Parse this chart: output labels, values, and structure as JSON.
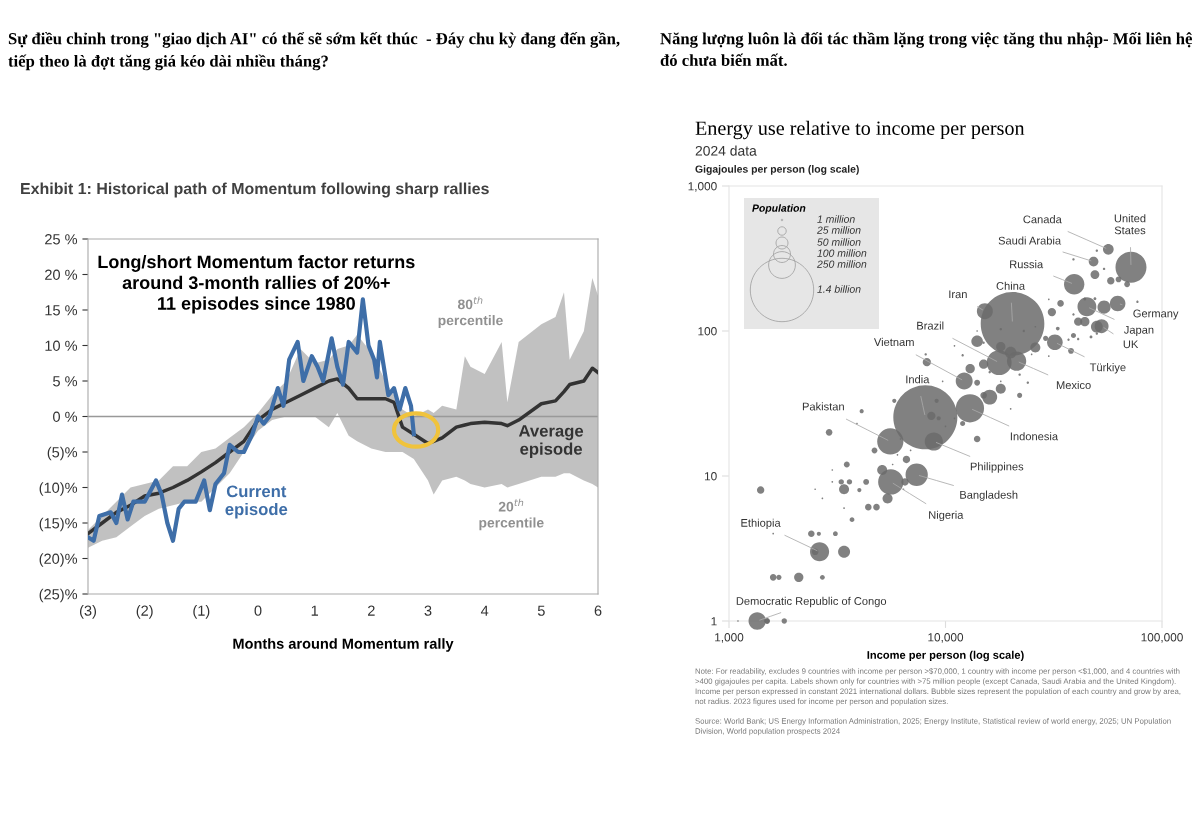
{
  "chart_data": [
    {
      "type": "line",
      "title": "Sự điều chỉnh trong \"giao dịch AI\" có thể sẽ sớm kết thúc  - Đáy chu kỳ đang đến gần, tiếp theo là đợt tăng giá kéo dài nhiều tháng?",
      "subtitle": "Exhibit 1: Historical path of Momentum following sharp rallies",
      "xlabel": "Months around Momentum rally",
      "xlim": [
        -3,
        6
      ],
      "xticks": [
        {
          "value": -3,
          "label": "(3)"
        },
        {
          "value": -2,
          "label": "(2)"
        },
        {
          "value": -1,
          "label": "(1)"
        },
        0,
        1,
        2,
        3,
        4,
        5,
        6
      ],
      "ylim": [
        -25,
        25
      ],
      "yticks": [
        {
          "value": -25,
          "label": "(25)%"
        },
        {
          "value": -20,
          "label": "(20)%"
        },
        {
          "value": -15,
          "label": "(15)%"
        },
        {
          "value": -10,
          "label": "(10)%"
        },
        {
          "value": -5,
          "label": "(5)%"
        },
        {
          "value": 0,
          "label": "0 %"
        },
        {
          "value": 5,
          "label": "5 %"
        },
        {
          "value": 10,
          "label": "10 %"
        },
        {
          "value": 15,
          "label": "15 %"
        },
        {
          "value": 20,
          "label": "20 %"
        },
        {
          "value": 25,
          "label": "25 %"
        }
      ],
      "ref_lines": [
        {
          "axis": "y",
          "value": 0,
          "color": "#999999"
        }
      ],
      "series": [
        {
          "name": "Average episode",
          "color": "#333333",
          "x": [
            -3,
            -2.75,
            -2.5,
            -2.25,
            -2,
            -1.75,
            -1.5,
            -1.25,
            -1,
            -0.75,
            -0.5,
            -0.25,
            0,
            0.25,
            0.5,
            0.75,
            1,
            1.25,
            1.4,
            1.6,
            1.75,
            2,
            2.25,
            2.4,
            2.55,
            2.75,
            3,
            3.1,
            3.25,
            3.5,
            3.65,
            3.75,
            4,
            4.3,
            4.4,
            4.6,
            5,
            5.25,
            5.4,
            5.5,
            5.75,
            5.9,
            6
          ],
          "values": [
            -16.5,
            -15,
            -13.5,
            -12.5,
            -11.2,
            -10.8,
            -10,
            -9,
            -7.8,
            -6.5,
            -5,
            -3.5,
            -0.5,
            1,
            2,
            3,
            4,
            5,
            5.3,
            4,
            2.5,
            2.5,
            2.5,
            2,
            -1.5,
            -2.5,
            -3.8,
            -3.5,
            -3,
            -1.5,
            -1.2,
            -1,
            -0.8,
            -1,
            -1.3,
            -0.5,
            1.8,
            2.2,
            3.5,
            4.5,
            5,
            6.8,
            6.2
          ],
          "lower": [
            -18.5,
            -17.5,
            -17,
            -15.5,
            -14,
            -13,
            -12.5,
            -12,
            -12,
            -10,
            -8,
            -5,
            -2,
            -0.5,
            0,
            0,
            0,
            -1.5,
            0.5,
            -2.7,
            -3.5,
            -4.5,
            -5,
            -5,
            -5,
            -6,
            -9,
            -11,
            -9,
            -8.5,
            -9,
            -9.5,
            -10,
            -9.5,
            -10,
            -9.5,
            -8.5,
            -8.5,
            -8,
            -8,
            -9,
            -9.5,
            -10
          ],
          "upper": [
            -16,
            -14,
            -12,
            -10,
            -9.5,
            -9,
            -7,
            -7,
            -5,
            -4.5,
            -3,
            -1.5,
            0.5,
            3,
            5,
            9.5,
            7.5,
            8,
            9.5,
            10,
            11.5,
            9,
            5,
            3,
            1,
            0,
            1,
            0.5,
            1.5,
            1,
            8.5,
            7,
            6,
            10.5,
            2,
            10.5,
            13,
            14,
            17.5,
            8,
            12,
            19.5,
            17
          ]
        },
        {
          "name": "Current episode",
          "color": "#3e6ea8",
          "x": [
            -3,
            -2.9,
            -2.8,
            -2.6,
            -2.5,
            -2.4,
            -2.3,
            -2.2,
            -2,
            -1.8,
            -1.7,
            -1.6,
            -1.5,
            -1.4,
            -1.3,
            -1.1,
            -0.95,
            -0.85,
            -0.75,
            -0.6,
            -0.5,
            -0.35,
            -0.25,
            -0.1,
            0,
            0.1,
            0.2,
            0.35,
            0.45,
            0.55,
            0.7,
            0.8,
            0.95,
            1.05,
            1.15,
            1.3,
            1.4,
            1.5,
            1.6,
            1.75,
            1.85,
            1.95,
            2.05,
            2.1,
            2.15,
            2.3,
            2.4,
            2.5,
            2.6,
            2.7,
            2.75
          ],
          "values": [
            -17,
            -17.5,
            -14,
            -13.5,
            -15,
            -11,
            -14.5,
            -12,
            -12,
            -9,
            -11,
            -15,
            -17.5,
            -13,
            -12,
            -12,
            -9,
            -13.2,
            -9.5,
            -8,
            -4,
            -5,
            -5,
            -2.5,
            0,
            -1,
            0,
            4,
            1.5,
            8,
            10.5,
            5,
            8.5,
            7,
            5,
            11,
            7,
            4.5,
            10.5,
            9,
            16.5,
            10,
            8,
            5.5,
            10.5,
            3,
            4,
            1,
            4,
            1.5,
            -2.5
          ]
        }
      ],
      "annotations": [
        "Long/short Momentum factor returns\naround 3-month rallies of 20%+\n11 episodes since 1980",
        "80$^{th}$ percentile",
        "20$^{th}$ percentile"
      ]
    },
    {
      "type": "bubble",
      "title": "Năng lượng luôn là đối tác thầm lặng trong việc tăng thu nhập- Mối liên hệ đó chưa biến mất.",
      "subtitle": "Energy use relative to income per person",
      "xlabel": "Income per person (log scale)",
      "ylabel": "Gigajoules per person (log scale)",
      "log": "xy",
      "xlim": [
        1000,
        100000
      ],
      "xticks": [
        {
          "value": 1000,
          "label": "1,000"
        },
        {
          "value": 10000,
          "label": "10,000"
        },
        {
          "value": 100000,
          "label": "100,000"
        }
      ],
      "ylim": [
        1,
        1000
      ],
      "yticks": [
        1,
        10,
        100,
        {
          "value": 1000,
          "label": "1,000"
        }
      ],
      "color": "#6b6b6b",
      "legend_title": "Population",
      "size_legend": [
        {
          "value": 1,
          "label": "1 million"
        },
        {
          "value": 25,
          "label": "25 million"
        },
        {
          "value": 50,
          "label": "50 million"
        },
        {
          "value": 100,
          "label": "100 million"
        },
        {
          "value": 250,
          "label": "250 million"
        },
        {
          "value": 1400,
          "label": "1.4 billion"
        }
      ],
      "x": [
        71900,
        56500,
        48300,
        39300,
        20400,
        15200,
        62400,
        45000,
        52600,
        17700,
        21300,
        32000,
        12200,
        8070,
        12970,
        5560,
        8830,
        7360,
        5590,
        2620,
        1350,
        50000,
        39000,
        54000,
        49000,
        58000,
        63000,
        69000,
        77000,
        54000,
        49000,
        44000,
        39000,
        34000,
        31000,
        30000,
        41000,
        44000,
        50000,
        50000,
        47000,
        39000,
        41000,
        37000,
        38000,
        33000,
        29000,
        26000,
        30000,
        25000,
        26000,
        23000,
        18000,
        18000,
        20000,
        15000,
        16000,
        14000,
        14000,
        15000,
        13000,
        14000,
        12000,
        11000,
        8200,
        8100,
        9700,
        18000,
        16000,
        15000,
        18000,
        22000,
        24000,
        22000,
        20000,
        12000,
        14000,
        9100,
        8600,
        9300,
        11000,
        10000,
        5800,
        4100,
        3900,
        2900,
        4700,
        6200,
        6900,
        6600,
        6000,
        3500,
        3000,
        5100,
        5700,
        6500,
        6400,
        4300,
        3600,
        3300,
        3000,
        3400,
        4000,
        2500,
        2700,
        1400,
        5400,
        3400,
        3700,
        4400,
        4800,
        2400,
        2600,
        3100,
        1600,
        2500,
        3400,
        1600,
        1700,
        2100,
        2700,
        1500,
        1500,
        1800,
        1100
      ],
      "values": [
        275,
        366,
        301,
        210,
        112,
        137,
        155,
        147,
        108,
        60.5,
        62,
        83.6,
        45.2,
        25.4,
        29.3,
        17.3,
        17.3,
        10.2,
        9.1,
        3,
        1,
        358,
        312,
        268,
        245,
        222,
        227,
        210,
        159,
        146,
        167,
        166,
        130,
        155,
        135,
        165,
        116,
        116,
        107,
        96,
        91,
        93,
        88,
        87,
        73,
        104,
        89,
        77,
        67,
        69,
        107,
        100,
        103,
        78,
        71,
        59,
        52,
        85,
        100,
        83,
        55,
        44,
        68,
        79,
        61,
        69,
        45,
        40,
        35,
        36,
        45,
        50,
        44,
        36,
        29,
        23,
        18,
        33,
        26,
        25,
        25,
        22,
        33,
        28,
        23,
        20,
        15,
        18,
        15,
        13,
        14,
        12,
        11,
        11,
        12,
        9.1,
        8.1,
        9.1,
        9.1,
        9.1,
        9.1,
        8.1,
        8,
        8.1,
        7,
        8,
        7,
        6,
        5,
        6.1,
        6.1,
        4,
        4,
        4,
        4,
        3,
        3,
        2,
        2,
        2,
        2,
        1,
        1,
        1,
        1
      ],
      "sizes": [
        335,
        40,
        33,
        144,
        1410,
        89,
        84,
        124,
        68,
        216,
        129,
        85,
        100,
        1430,
        278,
        240,
        115,
        173,
        224,
        127,
        105,
        2,
        2,
        2,
        27,
        19,
        12,
        12,
        2,
        60,
        3,
        3,
        2,
        15,
        24,
        1,
        24,
        30,
        48,
        2,
        3,
        9,
        2,
        2,
        12,
        5,
        9,
        35,
        1,
        1,
        1,
        2,
        2,
        30,
        47,
        30,
        2,
        47,
        1,
        2,
        30,
        12,
        2,
        1,
        24,
        2,
        1,
        35,
        78,
        15,
        1,
        2,
        2,
        9,
        1,
        9,
        15,
        6,
        24,
        6,
        1,
        1,
        6,
        6,
        1,
        15,
        12,
        1,
        1,
        19,
        1,
        12,
        1,
        35,
        1,
        19,
        1,
        12,
        10,
        10,
        1,
        35,
        6,
        1,
        1,
        19,
        35,
        1,
        8,
        15,
        15,
        15,
        6,
        8,
        1,
        15,
        50,
        15,
        9,
        30,
        8,
        12,
        8,
        10,
        1
      ],
      "annotations": [
        "2024 data",
        "Note: For readability, excludes 9 countries with income per person >$70,000, 1 country with income per person <$1,000, and 4 countries with >400 gigajoules per capita. Labels shown only for countries with >75 million people (except Canada, Saudi Arabia and the United Kingdom). Income per person expressed in constant 2021 international dollars. Bubble sizes represent the population of each country and grow by area, not radius. 2023 figures used for income per person and population sizes.",
        "Source: World Bank; US Energy Information Administration, 2025; Energy Institute, Statistical review of world energy, 2025; UN Population Division, World population prospects 2024",
        {
          "text": "United States",
          "x": 71900,
          "y": 275
        },
        {
          "text": "Canada",
          "x": 56500,
          "y": 366
        },
        {
          "text": "Saudi Arabia",
          "x": 48300,
          "y": 301
        },
        {
          "text": "Russia",
          "x": 39300,
          "y": 210
        },
        {
          "text": "China",
          "x": 20400,
          "y": 112
        },
        {
          "text": "Iran",
          "x": 15200,
          "y": 137
        },
        {
          "text": "Germany",
          "x": 62400,
          "y": 155
        },
        {
          "text": "Japan",
          "x": 45000,
          "y": 147
        },
        {
          "text": "UK",
          "x": 52600,
          "y": 108
        },
        {
          "text": "Brazil",
          "x": 17700,
          "y": 60.5
        },
        {
          "text": "Mexico",
          "x": 21300,
          "y": 62
        },
        {
          "text": "Türkiye",
          "x": 32000,
          "y": 83.6
        },
        {
          "text": "Vietnam",
          "x": 12200,
          "y": 45.2
        },
        {
          "text": "India",
          "x": 8070,
          "y": 25.4
        },
        {
          "text": "Indonesia",
          "x": 12970,
          "y": 29.3
        },
        {
          "text": "Pakistan",
          "x": 5560,
          "y": 17.3
        },
        {
          "text": "Philippines",
          "x": 8830,
          "y": 17.3
        },
        {
          "text": "Bangladesh",
          "x": 7360,
          "y": 10.2
        },
        {
          "text": "Nigeria",
          "x": 5590,
          "y": 9.1
        },
        {
          "text": "Ethiopia",
          "x": 2620,
          "y": 3
        },
        {
          "text": "Democratic Republic of Congo",
          "x": 1350,
          "y": 1
        }
      ]
    }
  ]
}
